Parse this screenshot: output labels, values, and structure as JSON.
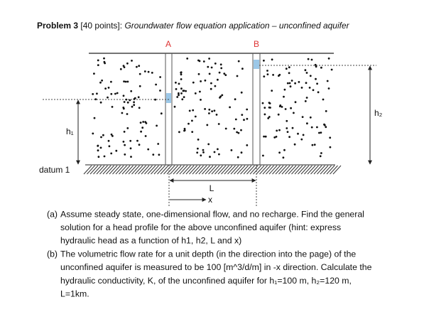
{
  "title": {
    "problem": "Problem 3",
    "points": "[40 points]:",
    "subject": "Groundwater flow equation application – unconfined aquifer"
  },
  "diagram": {
    "well_a": "A",
    "well_b": "B",
    "h1": "h₁",
    "h2": "h₂",
    "datum": "datum 1",
    "length": "L",
    "x_axis": "x"
  },
  "questions": [
    {
      "label": "(a)",
      "lines": [
        "Assume steady state, one-dimensional flow, and no recharge. Find the general",
        "solution for a head profile for the above unconfined aquifer (hint: express",
        "hydraulic head as a function of h1, h2, L and x)"
      ]
    },
    {
      "label": "(b)",
      "lines": [
        "The volumetric flow rate for a unit depth (in the direction into the page) of the",
        "unconfined aquifer is measured to be 100 [m^3/d/m] in -x direction. Calculate the",
        "hydraulic conductivity, K, of the unconfined aquifer for h₁=100 m, h₂=120 m,",
        "L=1km."
      ]
    }
  ]
}
